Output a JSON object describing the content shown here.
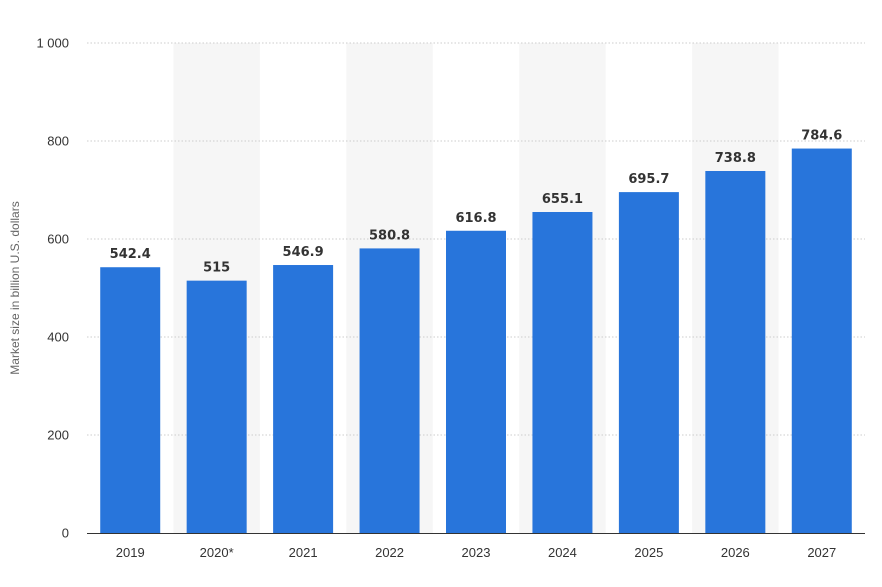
{
  "chart_data": {
    "type": "bar",
    "title": "",
    "xlabel": "",
    "ylabel": "Market size in billion U.S. dollars",
    "categories": [
      "2019",
      "2020*",
      "2021",
      "2022",
      "2023",
      "2024",
      "2025",
      "2026",
      "2027"
    ],
    "values": [
      542.4,
      515,
      546.9,
      580.8,
      616.8,
      655.1,
      695.7,
      738.8,
      784.6
    ],
    "data_labels": [
      "542.4",
      "515",
      "546.9",
      "580.8",
      "616.8",
      "655.1",
      "695.7",
      "738.8",
      "784.6"
    ],
    "ylim": [
      0,
      1000
    ],
    "yticks": [
      0,
      200,
      400,
      600,
      800,
      1000
    ],
    "ytick_labels": [
      "0",
      "200",
      "400",
      "600",
      "800",
      "1 000"
    ],
    "grid": true,
    "legend": "none",
    "bar_color": "#2875DB",
    "band_color": "#F6F6F6",
    "grid_color": "#CCCCCC"
  }
}
